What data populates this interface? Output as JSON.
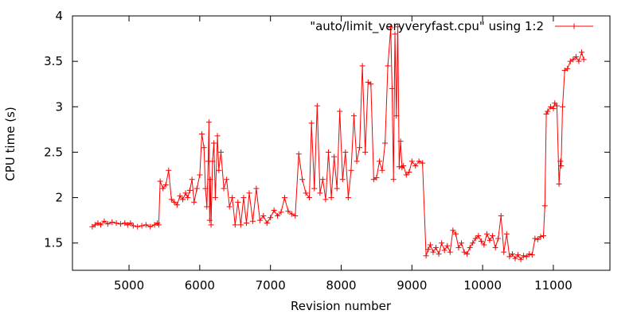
{
  "chart_data": {
    "type": "line",
    "title": "",
    "xlabel": "Revision number",
    "ylabel": "CPU time (s)",
    "xlim": [
      4200,
      11800
    ],
    "ylim": [
      1.2,
      4.0
    ],
    "xticks": [
      5000,
      6000,
      7000,
      8000,
      9000,
      10000,
      11000
    ],
    "yticks": [
      1.5,
      2.0,
      2.5,
      3.0,
      3.5,
      4.0
    ],
    "xtick_labels": [
      "5000",
      "6000",
      "7000",
      "8000",
      "9000",
      "10000",
      "11000"
    ],
    "ytick_labels": [
      "1.5",
      "2",
      "2.5",
      "3",
      "3.5",
      "4"
    ],
    "legend_position": "top-right",
    "marker": "plus",
    "color": "#ff0000",
    "series": [
      {
        "name": "\"auto/limit_veryveryfast.cpu\" using 1:2",
        "x": [
          4480,
          4520,
          4560,
          4600,
          4650,
          4700,
          4760,
          4820,
          4880,
          4940,
          4980,
          5020,
          5060,
          5120,
          5180,
          5240,
          5300,
          5360,
          5400,
          5420,
          5440,
          5480,
          5520,
          5560,
          5600,
          5640,
          5680,
          5720,
          5760,
          5800,
          5830,
          5860,
          5890,
          5920,
          5960,
          6000,
          6030,
          6060,
          6080,
          6100,
          6120,
          6130,
          6140,
          6150,
          6160,
          6180,
          6200,
          6220,
          6250,
          6270,
          6300,
          6340,
          6380,
          6420,
          6460,
          6500,
          6540,
          6580,
          6620,
          6660,
          6700,
          6750,
          6800,
          6850,
          6900,
          6950,
          7000,
          7050,
          7100,
          7150,
          7200,
          7250,
          7300,
          7350,
          7400,
          7450,
          7500,
          7550,
          7580,
          7620,
          7660,
          7700,
          7740,
          7780,
          7820,
          7860,
          7900,
          7940,
          7980,
          8020,
          8060,
          8100,
          8140,
          8180,
          8220,
          8260,
          8300,
          8340,
          8380,
          8420,
          8460,
          8500,
          8540,
          8580,
          8620,
          8660,
          8700,
          8720,
          8740,
          8760,
          8780,
          8800,
          8820,
          8840,
          8860,
          8880,
          8920,
          8960,
          9000,
          9050,
          9100,
          9150,
          9200,
          9230,
          9260,
          9300,
          9340,
          9380,
          9420,
          9460,
          9500,
          9540,
          9580,
          9620,
          9660,
          9700,
          9740,
          9780,
          9820,
          9860,
          9900,
          9940,
          9980,
          10020,
          10060,
          10100,
          10140,
          10180,
          10220,
          10260,
          10300,
          10340,
          10380,
          10420,
          10460,
          10500,
          10540,
          10580,
          10620,
          10660,
          10700,
          10740,
          10780,
          10820,
          10860,
          10880,
          10900,
          10920,
          10960,
          11000,
          11020,
          11050,
          11080,
          11100,
          11110,
          11130,
          11160,
          11200,
          11240,
          11280,
          11320,
          11360,
          11400,
          11430
        ],
        "y": [
          1.68,
          1.7,
          1.72,
          1.7,
          1.74,
          1.71,
          1.73,
          1.72,
          1.71,
          1.72,
          1.7,
          1.72,
          1.69,
          1.68,
          1.69,
          1.7,
          1.68,
          1.7,
          1.72,
          1.7,
          2.18,
          2.1,
          2.14,
          2.3,
          1.98,
          1.95,
          1.92,
          2.02,
          1.98,
          2.05,
          2.0,
          2.08,
          2.2,
          1.95,
          2.1,
          2.25,
          2.7,
          2.55,
          2.1,
          1.9,
          2.4,
          2.83,
          1.75,
          2.2,
          1.7,
          2.4,
          2.6,
          2.0,
          2.68,
          2.3,
          2.5,
          2.1,
          2.2,
          1.9,
          2.0,
          1.7,
          1.95,
          1.7,
          2.0,
          1.72,
          2.05,
          1.74,
          2.1,
          1.75,
          1.8,
          1.72,
          1.78,
          1.86,
          1.8,
          1.84,
          2.0,
          1.85,
          1.82,
          1.8,
          2.48,
          2.2,
          2.05,
          2.0,
          2.82,
          2.1,
          3.01,
          2.05,
          2.2,
          1.98,
          2.5,
          2.0,
          2.45,
          2.1,
          2.95,
          2.2,
          2.5,
          2.0,
          2.3,
          2.9,
          2.4,
          2.55,
          3.45,
          2.5,
          3.27,
          3.25,
          2.2,
          2.22,
          2.4,
          2.3,
          2.6,
          3.45,
          3.87,
          3.2,
          2.2,
          3.8,
          2.9,
          3.88,
          2.34,
          2.62,
          2.33,
          2.35,
          2.25,
          2.28,
          2.4,
          2.35,
          2.4,
          2.38,
          1.36,
          1.43,
          1.48,
          1.4,
          1.45,
          1.38,
          1.5,
          1.42,
          1.47,
          1.4,
          1.64,
          1.6,
          1.45,
          1.5,
          1.4,
          1.38,
          1.45,
          1.5,
          1.55,
          1.58,
          1.52,
          1.48,
          1.6,
          1.53,
          1.58,
          1.45,
          1.55,
          1.8,
          1.4,
          1.6,
          1.35,
          1.38,
          1.33,
          1.37,
          1.32,
          1.36,
          1.35,
          1.38,
          1.37,
          1.55,
          1.54,
          1.57,
          1.58,
          1.91,
          2.92,
          2.95,
          3.0,
          2.98,
          3.04,
          3.01,
          2.15,
          2.4,
          2.35,
          3.0,
          3.4,
          3.42,
          3.5,
          3.52,
          3.55,
          3.5,
          3.6,
          3.52
        ]
      }
    ]
  }
}
